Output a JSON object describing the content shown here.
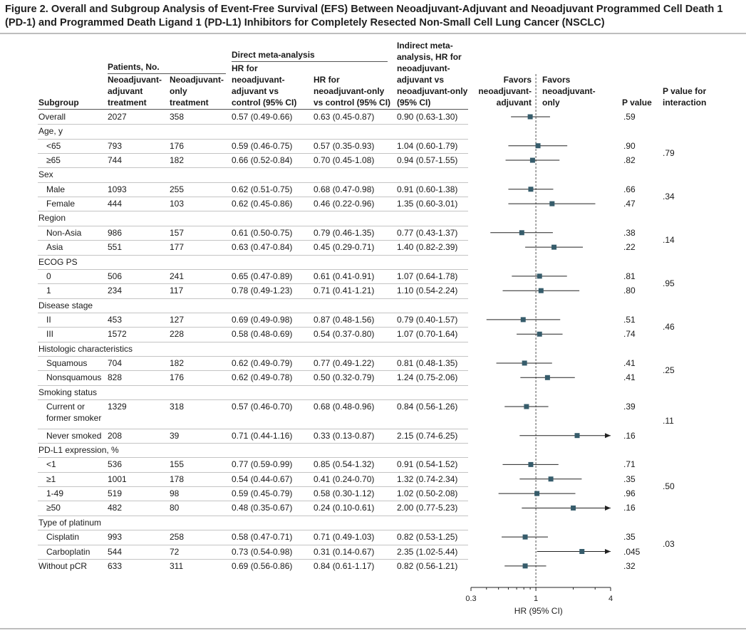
{
  "figure": {
    "title": "Figure 2. Overall and Subgroup Analysis of Event-Free Survival (EFS) Between Neoadjuvant-Adjuvant and Neoadjuvant Programmed Cell Death 1 (PD-1) and Programmed Death Ligand 1 (PD-L1) Inhibitors for Completely Resected Non-Small Cell Lung Cancer (NSCLC)"
  },
  "headers": {
    "subgroup": "Subgroup",
    "patients": "Patients, No.",
    "na_treatment": "Neoadjuvant-\nadjuvant\ntreatment",
    "n_treatment": "Neoadjuvant-\nonly\ntreatment",
    "direct": "Direct meta-analysis",
    "hr_na": "HR for\nneoadjuvant-\nadjuvant vs\ncontrol (95% CI)",
    "hr_n": "HR for\nneoadjuvant-only\nvs control (95% CI)",
    "indirect": "Indirect meta-\nanalysis, HR for\nneoadjuvant-\nadjuvant vs\nneoadjuvant-only\n(95% CI)",
    "favors_left": "Favors\nneoadjuvant-\nadjuvant",
    "favors_right": "Favors\nneoadjuvant-\nonly",
    "pvalue": "P value",
    "pinteraction": "P value for\ninteraction"
  },
  "rows": [
    {
      "label": "Overall",
      "type": "data",
      "indent": false,
      "n_na": "2027",
      "n_n": "358",
      "hr_na": "0.57 (0.49-0.66)",
      "hr_n": "0.63 (0.45-0.87)",
      "indirect": "0.90 (0.63-1.30)",
      "p": ".59",
      "hr": 0.9,
      "lo": 0.63,
      "hi": 1.3
    },
    {
      "label": "Age, y",
      "type": "group"
    },
    {
      "label": "<65",
      "type": "data",
      "indent": true,
      "n_na": "793",
      "n_n": "176",
      "hr_na": "0.59 (0.46-0.75)",
      "hr_n": "0.57 (0.35-0.93)",
      "indirect": "1.04 (0.60-1.79)",
      "p": ".90",
      "hr": 1.04,
      "lo": 0.6,
      "hi": 1.79
    },
    {
      "label": "≥65",
      "type": "data",
      "indent": true,
      "n_na": "744",
      "n_n": "182",
      "hr_na": "0.66 (0.52-0.84)",
      "hr_n": "0.70 (0.45-1.08)",
      "indirect": "0.94 (0.57-1.55)",
      "p": ".82",
      "hr": 0.94,
      "lo": 0.57,
      "hi": 1.55
    },
    {
      "label": "Sex",
      "type": "group"
    },
    {
      "label": "Male",
      "type": "data",
      "indent": true,
      "n_na": "1093",
      "n_n": "255",
      "hr_na": "0.62 (0.51-0.75)",
      "hr_n": "0.68 (0.47-0.98)",
      "indirect": "0.91 (0.60-1.38)",
      "p": ".66",
      "hr": 0.91,
      "lo": 0.6,
      "hi": 1.38
    },
    {
      "label": "Female",
      "type": "data",
      "indent": true,
      "n_na": "444",
      "n_n": "103",
      "hr_na": "0.62 (0.45-0.86)",
      "hr_n": "0.46 (0.22-0.96)",
      "indirect": "1.35 (0.60-3.01)",
      "p": ".47",
      "hr": 1.35,
      "lo": 0.6,
      "hi": 3.01
    },
    {
      "label": "Region",
      "type": "group"
    },
    {
      "label": "Non-Asia",
      "type": "data",
      "indent": true,
      "n_na": "986",
      "n_n": "157",
      "hr_na": "0.61 (0.50-0.75)",
      "hr_n": "0.79 (0.46-1.35)",
      "indirect": "0.77 (0.43-1.37)",
      "p": ".38",
      "hr": 0.77,
      "lo": 0.43,
      "hi": 1.37
    },
    {
      "label": "Asia",
      "type": "data",
      "indent": true,
      "n_na": "551",
      "n_n": "177",
      "hr_na": "0.63 (0.47-0.84)",
      "hr_n": "0.45 (0.29-0.71)",
      "indirect": "1.40 (0.82-2.39)",
      "p": ".22",
      "hr": 1.4,
      "lo": 0.82,
      "hi": 2.39
    },
    {
      "label": "ECOG PS",
      "type": "group"
    },
    {
      "label": "0",
      "type": "data",
      "indent": true,
      "n_na": "506",
      "n_n": "241",
      "hr_na": "0.65 (0.47-0.89)",
      "hr_n": "0.61 (0.41-0.91)",
      "indirect": "1.07 (0.64-1.78)",
      "p": ".81",
      "hr": 1.07,
      "lo": 0.64,
      "hi": 1.78
    },
    {
      "label": "1",
      "type": "data",
      "indent": true,
      "n_na": "234",
      "n_n": "117",
      "hr_na": "0.78 (0.49-1.23)",
      "hr_n": "0.71 (0.41-1.21)",
      "indirect": "1.10 (0.54-2.24)",
      "p": ".80",
      "hr": 1.1,
      "lo": 0.54,
      "hi": 2.24
    },
    {
      "label": "Disease stage",
      "type": "group"
    },
    {
      "label": "II",
      "type": "data",
      "indent": true,
      "n_na": "453",
      "n_n": "127",
      "hr_na": "0.69 (0.49-0.98)",
      "hr_n": "0.87 (0.48-1.56)",
      "indirect": "0.79 (0.40-1.57)",
      "p": ".51",
      "hr": 0.79,
      "lo": 0.4,
      "hi": 1.57
    },
    {
      "label": "III",
      "type": "data",
      "indent": true,
      "n_na": "1572",
      "n_n": "228",
      "hr_na": "0.58 (0.48-0.69)",
      "hr_n": "0.54 (0.37-0.80)",
      "indirect": "1.07 (0.70-1.64)",
      "p": ".74",
      "hr": 1.07,
      "lo": 0.7,
      "hi": 1.64
    },
    {
      "label": "Histologic characteristics",
      "type": "group"
    },
    {
      "label": "Squamous",
      "type": "data",
      "indent": true,
      "n_na": "704",
      "n_n": "182",
      "hr_na": "0.62 (0.49-0.79)",
      "hr_n": "0.77 (0.49-1.22)",
      "indirect": "0.81 (0.48-1.35)",
      "p": ".41",
      "hr": 0.81,
      "lo": 0.48,
      "hi": 1.35
    },
    {
      "label": "Nonsquamous",
      "type": "data",
      "indent": true,
      "n_na": "828",
      "n_n": "176",
      "hr_na": "0.62 (0.49-0.78)",
      "hr_n": "0.50 (0.32-0.79)",
      "indirect": "1.24 (0.75-2.06)",
      "p": ".41",
      "hr": 1.24,
      "lo": 0.75,
      "hi": 2.06
    },
    {
      "label": "Smoking status",
      "type": "group"
    },
    {
      "label": "Current or\nformer smoker",
      "type": "data",
      "indent": true,
      "tall": true,
      "n_na": "1329",
      "n_n": "318",
      "hr_na": "0.57 (0.46-0.70)",
      "hr_n": "0.68 (0.48-0.96)",
      "indirect": "0.84 (0.56-1.26)",
      "p": ".39",
      "hr": 0.84,
      "lo": 0.56,
      "hi": 1.26
    },
    {
      "label": "Never smoked",
      "type": "data",
      "indent": true,
      "n_na": "208",
      "n_n": "39",
      "hr_na": "0.71 (0.44-1.16)",
      "hr_n": "0.33 (0.13-0.87)",
      "indirect": "2.15 (0.74-6.25)",
      "p": ".16",
      "hr": 2.15,
      "lo": 0.74,
      "hi": 6.25
    },
    {
      "label": "PD-L1 expression, %",
      "type": "group"
    },
    {
      "label": "<1",
      "type": "data",
      "indent": true,
      "n_na": "536",
      "n_n": "155",
      "hr_na": "0.77 (0.59-0.99)",
      "hr_n": "0.85 (0.54-1.32)",
      "indirect": "0.91 (0.54-1.52)",
      "p": ".71",
      "hr": 0.91,
      "lo": 0.54,
      "hi": 1.52
    },
    {
      "label": "≥1",
      "type": "data",
      "indent": true,
      "n_na": "1001",
      "n_n": "178",
      "hr_na": "0.54 (0.44-0.67)",
      "hr_n": "0.41 (0.24-0.70)",
      "indirect": "1.32 (0.74-2.34)",
      "p": ".35",
      "hr": 1.32,
      "lo": 0.74,
      "hi": 2.34
    },
    {
      "label": "1-49",
      "type": "data",
      "indent": true,
      "n_na": "519",
      "n_n": "98",
      "hr_na": "0.59 (0.45-0.79)",
      "hr_n": "0.58 (0.30-1.12)",
      "indirect": "1.02 (0.50-2.08)",
      "p": ".96",
      "hr": 1.02,
      "lo": 0.5,
      "hi": 2.08
    },
    {
      "label": "≥50",
      "type": "data",
      "indent": true,
      "n_na": "482",
      "n_n": "80",
      "hr_na": "0.48 (0.35-0.67)",
      "hr_n": "0.24 (0.10-0.61)",
      "indirect": "2.00 (0.77-5.23)",
      "p": ".16",
      "hr": 2.0,
      "lo": 0.77,
      "hi": 5.23
    },
    {
      "label": "Type of platinum",
      "type": "group"
    },
    {
      "label": "Cisplatin",
      "type": "data",
      "indent": true,
      "n_na": "993",
      "n_n": "258",
      "hr_na": "0.58 (0.47-0.71)",
      "hr_n": "0.71 (0.49-1.03)",
      "indirect": "0.82 (0.53-1.25)",
      "p": ".35",
      "hr": 0.82,
      "lo": 0.53,
      "hi": 1.25
    },
    {
      "label": "Carboplatin",
      "type": "data",
      "indent": true,
      "n_na": "544",
      "n_n": "72",
      "hr_na": "0.73 (0.54-0.98)",
      "hr_n": "0.31 (0.14-0.67)",
      "indirect": "2.35 (1.02-5.44)",
      "p": ".045",
      "hr": 2.35,
      "lo": 1.02,
      "hi": 5.44
    },
    {
      "label": "Without pCR",
      "type": "data",
      "indent": false,
      "n_na": "633",
      "n_n": "311",
      "hr_na": "0.69 (0.56-0.86)",
      "hr_n": "0.84 (0.61-1.17)",
      "indirect": "0.82 (0.56-1.21)",
      "p": ".32",
      "hr": 0.82,
      "lo": 0.56,
      "hi": 1.21
    }
  ],
  "interactions": [
    {
      "between": [
        "<65",
        "≥65"
      ],
      "value": ".79"
    },
    {
      "between": [
        "Male",
        "Female"
      ],
      "value": ".34"
    },
    {
      "between": [
        "Non-Asia",
        "Asia"
      ],
      "value": ".14"
    },
    {
      "between": [
        "0",
        "1"
      ],
      "value": ".95"
    },
    {
      "between": [
        "II",
        "III"
      ],
      "value": ".46"
    },
    {
      "between": [
        "Squamous",
        "Nonsquamous"
      ],
      "value": ".25"
    },
    {
      "between": [
        "Current or\nformer smoker",
        "Never smoked"
      ],
      "value": ".11"
    },
    {
      "between": [
        "<1",
        "≥50"
      ],
      "value": ".50"
    },
    {
      "between": [
        "Cisplatin",
        "Carboplatin"
      ],
      "value": ".03"
    }
  ],
  "chart_data": {
    "type": "forest",
    "xlabel": "HR (95% CI)",
    "xscale": "log",
    "xlim": [
      0.3,
      4
    ],
    "tick_labels": [
      "0.3",
      "1",
      "4"
    ],
    "minor_ticks": [
      0.4,
      0.5,
      0.6,
      0.7,
      0.8,
      0.9,
      2,
      3
    ],
    "reference_line": 1,
    "marker_color": "#365c6b",
    "line_color": "#222222"
  }
}
